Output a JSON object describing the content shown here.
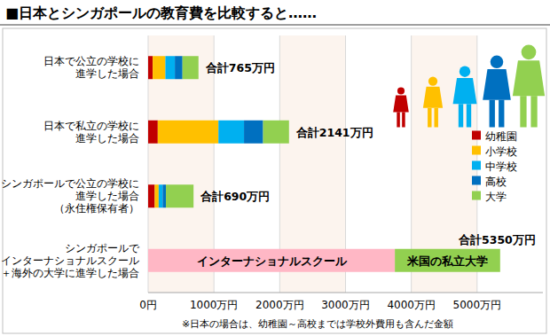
{
  "chart_data": {
    "type": "bar",
    "orientation": "horizontal",
    "stacked": true,
    "title": "■日本とシンガポールの教育費を比較すると……",
    "categories": [
      "日本で公立の学校に\n進学した場合",
      "日本で私立の学校に\n進学した場合",
      "シンガポールで公立の学校に\n進学した場合\n（永住権保有者）",
      "シンガポールで\nインターナショナルスクール\n＋海外の大学に進学した場合"
    ],
    "series": [
      {
        "name": "幼稚園",
        "color": "#c00000",
        "values": [
          69,
          146,
          100,
          null
        ]
      },
      {
        "name": "小学校",
        "color": "#ffc000",
        "values": [
          193,
          922,
          60,
          null
        ]
      },
      {
        "name": "中学校",
        "color": "#00b0f0",
        "values": [
          144,
          389,
          60,
          null
        ]
      },
      {
        "name": "高校",
        "color": "#0070c0",
        "values": [
          116,
          290,
          50,
          null
        ]
      },
      {
        "name": "大学",
        "color": "#92d050",
        "values": [
          243,
          394,
          420,
          null
        ]
      },
      {
        "name": "インターナショナルスクール",
        "color": "#ffb7c5",
        "values": [
          null,
          null,
          null,
          3750
        ]
      },
      {
        "name": "米国の私立大学",
        "color": "#92d050",
        "values": [
          null,
          null,
          null,
          1600
        ]
      }
    ],
    "totals": [
      765,
      2141,
      690,
      5350
    ],
    "total_labels": [
      "合計765万円",
      "合計2141万円",
      "合計690万円",
      "合計5350万円"
    ],
    "xlim": [
      0,
      6000
    ],
    "xticks": [
      {
        "value": 0,
        "label": "0円"
      },
      {
        "value": 1000,
        "label": "1000万円"
      },
      {
        "value": 2000,
        "label": "2000万円"
      },
      {
        "value": 3000,
        "label": "3000万円"
      },
      {
        "value": 4000,
        "label": "4000万円"
      },
      {
        "value": 5000,
        "label": "5000万円"
      }
    ],
    "grid": true,
    "legend": "right",
    "footnote": "※日本の場合は、幼稚園～高校までは学校外費用も含んだ金額"
  }
}
